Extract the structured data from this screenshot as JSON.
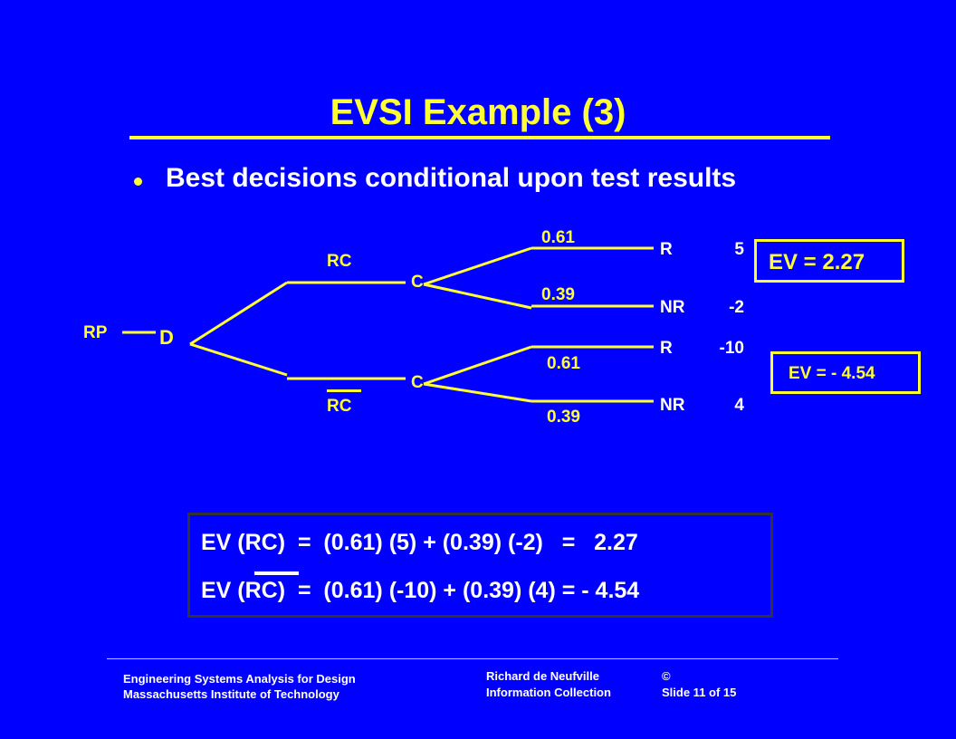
{
  "slide": {
    "title": "EVSI Example (3)",
    "bullet": "Best decisions conditional upon test results",
    "colors": {
      "background": "#0000FF",
      "accent": "#FFFF33",
      "text": "#FFFFFF"
    }
  },
  "tree": {
    "root": "RP",
    "decision": "D",
    "branch_top": "RC",
    "branch_bottom": "RC",
    "chance_top": "C",
    "chance_bottom": "C",
    "top_outcomes": [
      {
        "prob": "0.61",
        "label": "R",
        "value": "5"
      },
      {
        "prob": "0.39",
        "label": "NR",
        "value": "-2"
      }
    ],
    "bottom_outcomes": [
      {
        "prob": "0.61",
        "label": "R",
        "value": "-10"
      },
      {
        "prob": "0.39",
        "label": "NR",
        "value": "4"
      }
    ],
    "ev_top": "EV = 2.27",
    "ev_bottom": "EV = - 4.54"
  },
  "calc": {
    "line1": "EV (RC)  =  (0.61) (5) + (0.39) (-2)   =   2.27",
    "line2": "EV (RC)  =  (0.61) (-10) + (0.39) (4) = - 4.54"
  },
  "footer": {
    "left_line1": "Engineering Systems Analysis for Design",
    "left_line2": "Massachusetts Institute of Technology",
    "mid_line1": "Richard de Neufville",
    "mid_line2": "Information Collection",
    "right_line1": "©",
    "right_line2": "Slide 11 of 15"
  }
}
